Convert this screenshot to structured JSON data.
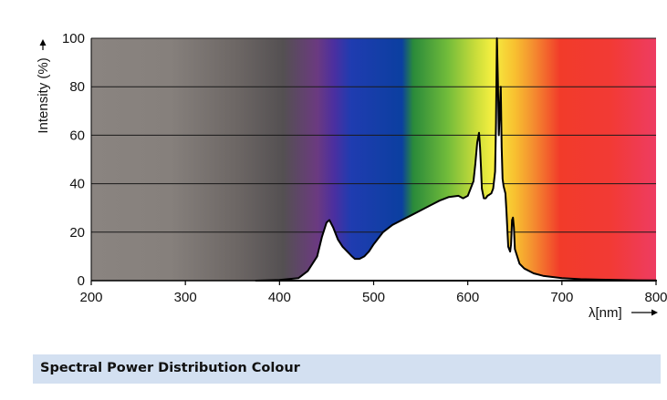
{
  "chart_data": {
    "type": "area",
    "xlabel": "λ[nm]",
    "ylabel": "Intensity (%)",
    "xlim": [
      200,
      800
    ],
    "ylim": [
      0,
      100
    ],
    "xticks": [
      200,
      300,
      400,
      500,
      600,
      700,
      800
    ],
    "yticks": [
      0,
      20,
      40,
      60,
      80,
      100
    ],
    "grid": "horizontal",
    "background": "visible spectrum color gradient",
    "series": [
      {
        "x": [
          375,
          400,
          420,
          430,
          440,
          445,
          450,
          453,
          457,
          462,
          467,
          472,
          477,
          480,
          485,
          490,
          495,
          500,
          510,
          520,
          530,
          540,
          550,
          560,
          570,
          580,
          590,
          595,
          600,
          603,
          606,
          608,
          610,
          612,
          613,
          614,
          615,
          617,
          619,
          621,
          623,
          625,
          627,
          629,
          630,
          631,
          632,
          633,
          634,
          635,
          636,
          637,
          638,
          639,
          640,
          641,
          643,
          645,
          646,
          647,
          648,
          649,
          650,
          655,
          660,
          670,
          680,
          690,
          700,
          720,
          740,
          760,
          780,
          800
        ],
        "y": [
          0,
          0.3,
          1,
          4,
          10,
          18,
          24,
          25,
          22,
          17,
          14,
          12,
          10,
          9,
          9,
          10,
          12,
          15,
          20,
          23,
          25,
          27,
          29,
          31,
          33,
          34.5,
          35,
          34,
          35,
          38,
          41,
          48,
          57,
          61,
          55,
          47,
          38,
          34,
          34,
          35,
          35.5,
          36,
          38,
          45,
          65,
          100,
          82,
          60,
          70,
          80,
          55,
          42,
          39,
          37.5,
          36,
          29,
          14,
          12,
          15,
          25,
          26,
          22,
          13,
          7,
          5,
          3,
          2,
          1.5,
          1,
          0.6,
          0.4,
          0.25,
          0.15,
          0.1
        ]
      }
    ]
  },
  "footer": {
    "caption": "Spectral Power Distribution Colour"
  }
}
